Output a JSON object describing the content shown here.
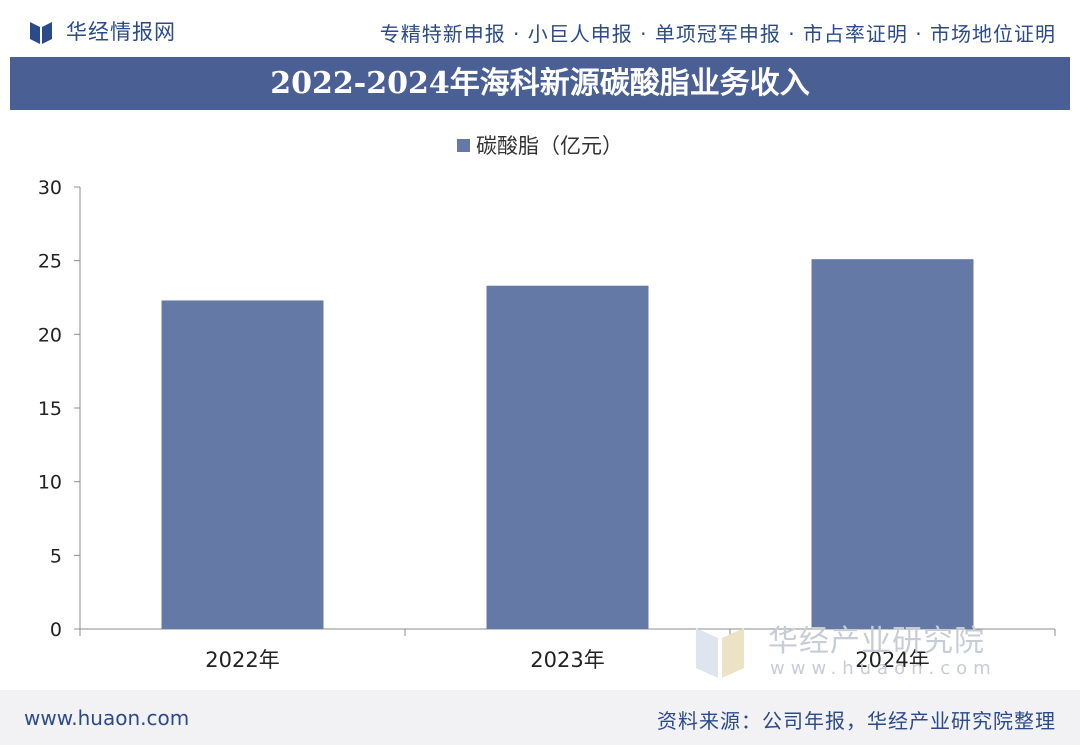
{
  "header": {
    "brand": "华经情报网",
    "tagline": "专精特新申报 · 小巨人申报 · 单项冠军申报 · 市占率证明 · 市场地位证明"
  },
  "icons": {
    "logo": "huajing-logo-icon"
  },
  "colors": {
    "bar": "#6579a6",
    "title_bar": "#4a5f94",
    "brand": "#2b4a8a"
  },
  "chart_data": {
    "type": "bar",
    "title": "2022-2024年海科新源碳酸脂业务收入",
    "categories": [
      "2022年",
      "2023年",
      "2024年"
    ],
    "series": [
      {
        "name": "碳酸脂（亿元）",
        "values": [
          22.3,
          23.3,
          25.1
        ]
      }
    ],
    "yticks": [
      "0",
      "5",
      "10",
      "15",
      "20",
      "25",
      "30"
    ],
    "ylim": [
      0,
      30
    ],
    "legend": "top-center",
    "grid": false
  },
  "watermark": {
    "text": "华经产业研究院",
    "url": "www.huaon.com"
  },
  "footer": {
    "url": "www.huaon.com",
    "source": "资料来源：公司年报，华经产业研究院整理"
  }
}
